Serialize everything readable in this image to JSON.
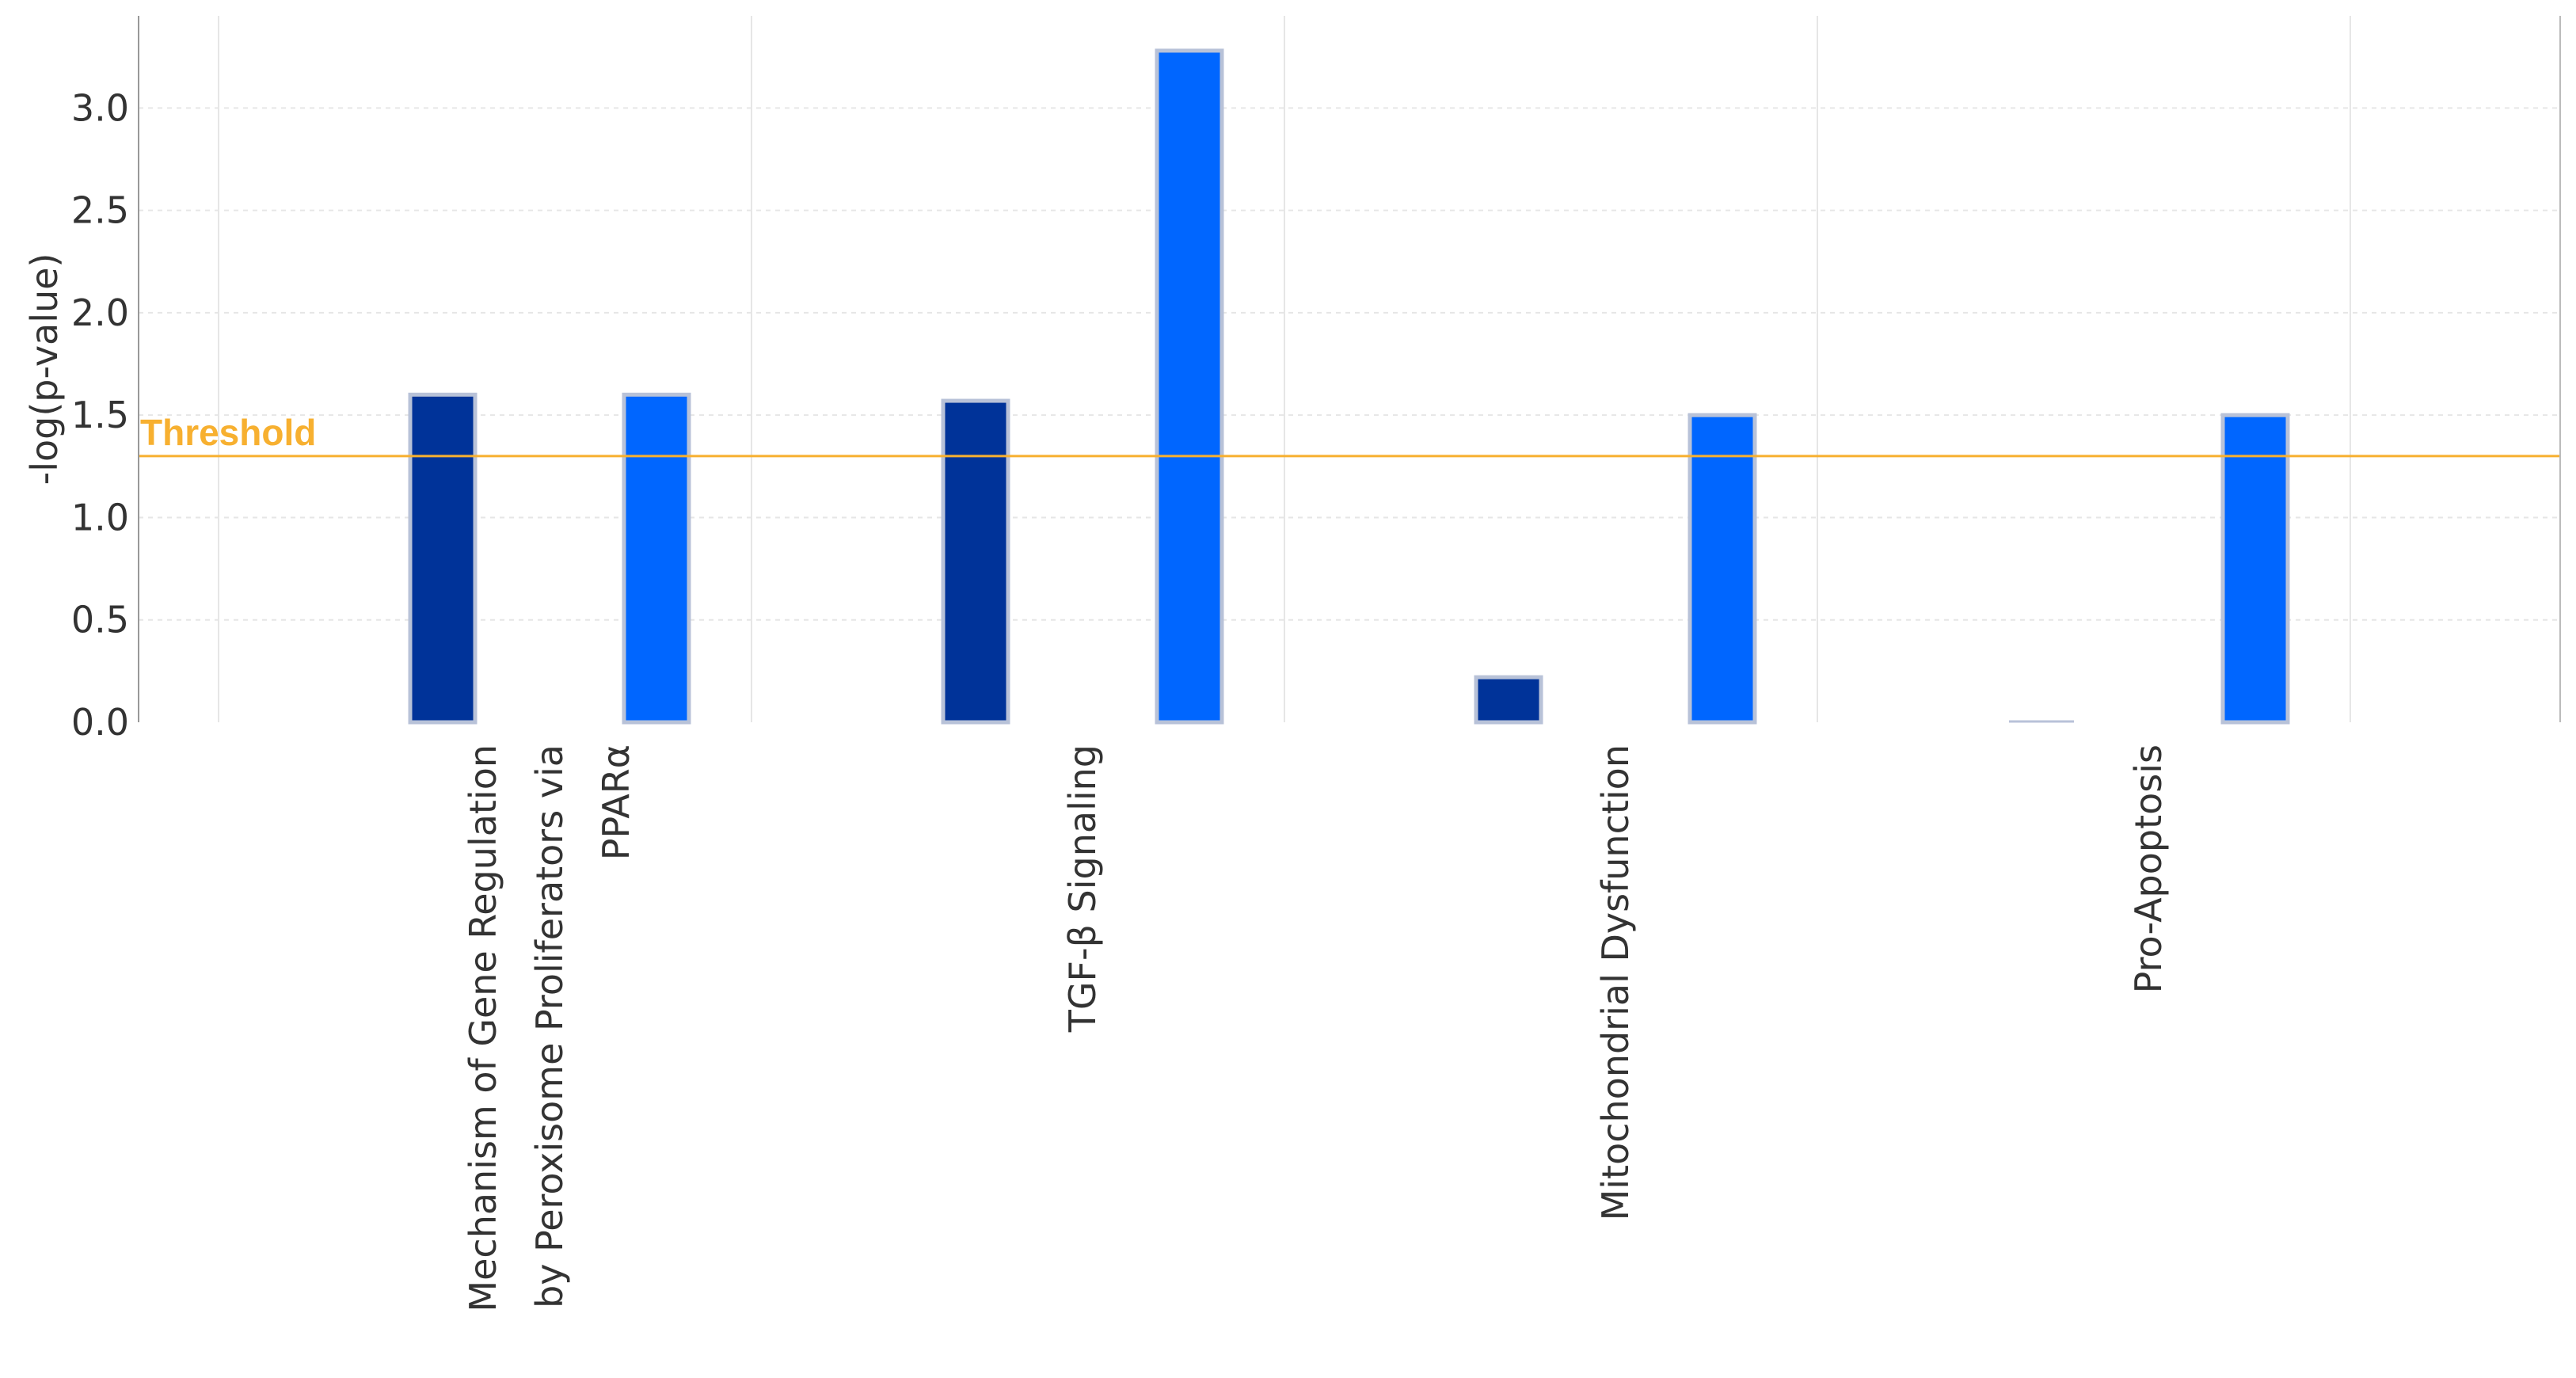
{
  "chart_data": {
    "type": "bar",
    "ylabel": "-log(p-value)",
    "ylim": [
      0,
      3.45
    ],
    "yticks": [
      "0.0",
      "0.5",
      "1.0",
      "1.5",
      "2.0",
      "2.5",
      "3.0"
    ],
    "categories": [
      {
        "id": "ppara",
        "lines": [
          "Mechanism of Gene Regulation",
          "by Peroxisome Proliferators via",
          "PPARα"
        ]
      },
      {
        "id": "tgfb",
        "lines": [
          "TGF-β Signaling"
        ]
      },
      {
        "id": "mito",
        "lines": [
          "Mitochondrial Dysfunction"
        ]
      },
      {
        "id": "apoptosis",
        "lines": [
          "Pro-Apoptosis"
        ]
      }
    ],
    "series": [
      {
        "color": "#003399",
        "values": [
          1.6,
          1.57,
          0.22,
          0.0
        ]
      },
      {
        "color": "#999999",
        "values": [
          0,
          0,
          0,
          0
        ]
      },
      {
        "color": "#0066ff",
        "values": [
          1.6,
          3.28,
          1.5,
          1.5
        ]
      }
    ],
    "threshold": {
      "label": "Threshold",
      "value": 1.3,
      "color": "#f7b030"
    },
    "grid": true
  }
}
